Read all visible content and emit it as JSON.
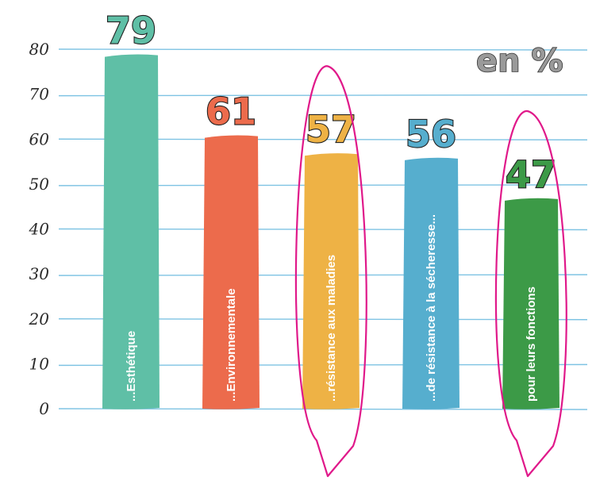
{
  "chart_data": {
    "type": "bar",
    "categories": [
      "...Esthétique",
      "...Environnementale",
      "...résistance aux maladies",
      "...de résistance à la sécheresse...",
      "pour leurs fonctions"
    ],
    "values": [
      79,
      61,
      57,
      56,
      47
    ],
    "value_labels": [
      "79",
      "61",
      "57",
      "56",
      "47"
    ],
    "unit_label": "en %",
    "yticks": [
      "0",
      "10",
      "20",
      "30",
      "40",
      "50",
      "60",
      "70",
      "80"
    ],
    "ylim": [
      0,
      80
    ],
    "grid": true,
    "colors": [
      "#5fbfa6",
      "#ec6b4c",
      "#eeb245",
      "#56aece",
      "#3c9a47"
    ],
    "gridline_color": "#7ec3e3",
    "highlight_color": "#e0198a",
    "highlighted": [
      "...résistance aux maladies",
      "pour leurs fonctions"
    ]
  }
}
